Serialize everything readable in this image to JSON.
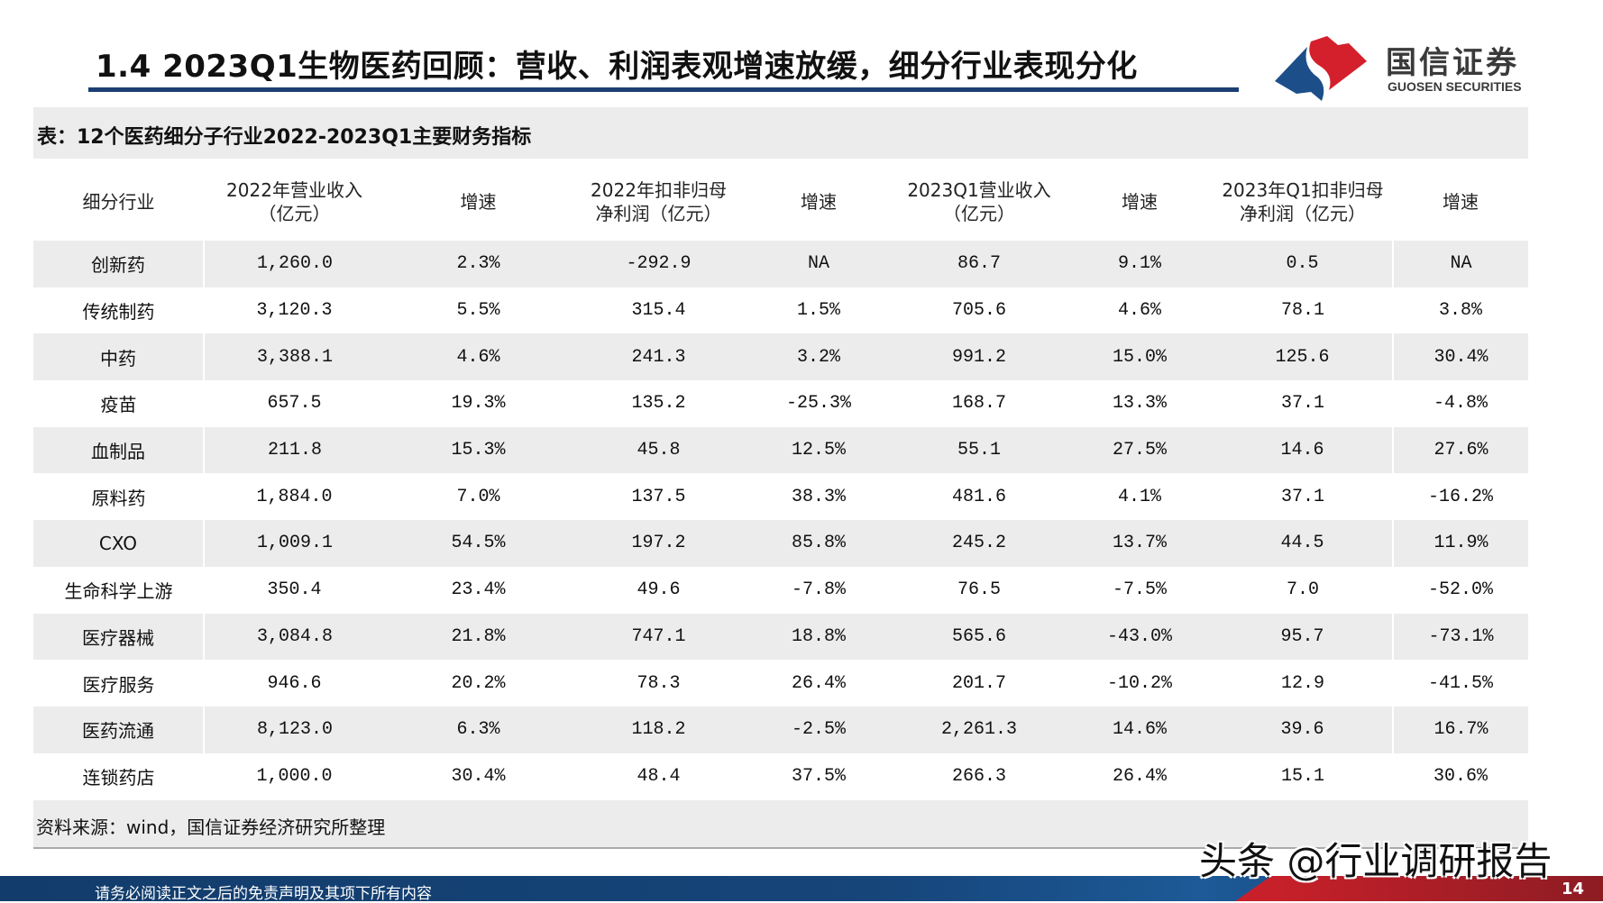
{
  "header": {
    "title": "1.4 2023Q1生物医药回顾：营收、利润表观增速放缓，细分行业表现分化",
    "logo_cn": "国信证券",
    "logo_en": "GUOSEN SECURITIES",
    "colors": {
      "blue": "#1c3f73",
      "red": "#d4202c"
    }
  },
  "table": {
    "caption": "表：12个医药细分子行业2022-2023Q1主要财务指标",
    "columns": [
      [
        "细分行业"
      ],
      [
        "2022年营业收入",
        "（亿元）"
      ],
      [
        "增速"
      ],
      [
        "2022年扣非归母",
        "净利润（亿元）"
      ],
      [
        "增速"
      ],
      [
        "2023Q1营业收入",
        "（亿元）"
      ],
      [
        "增速"
      ],
      [
        "2023年Q1扣非归母",
        "净利润（亿元）"
      ],
      [
        "增速"
      ]
    ],
    "rows": [
      [
        "创新药",
        "1,260.0",
        "2.3%",
        "-292.9",
        "NA",
        "86.7",
        "9.1%",
        "0.5",
        "NA"
      ],
      [
        "传统制药",
        "3,120.3",
        "5.5%",
        "315.4",
        "1.5%",
        "705.6",
        "4.6%",
        "78.1",
        "3.8%"
      ],
      [
        "中药",
        "3,388.1",
        "4.6%",
        "241.3",
        "3.2%",
        "991.2",
        "15.0%",
        "125.6",
        "30.4%"
      ],
      [
        "疫苗",
        "657.5",
        "19.3%",
        "135.2",
        "-25.3%",
        "168.7",
        "13.3%",
        "37.1",
        "-4.8%"
      ],
      [
        "血制品",
        "211.8",
        "15.3%",
        "45.8",
        "12.5%",
        "55.1",
        "27.5%",
        "14.6",
        "27.6%"
      ],
      [
        "原料药",
        "1,884.0",
        "7.0%",
        "137.5",
        "38.3%",
        "481.6",
        "4.1%",
        "37.1",
        "-16.2%"
      ],
      [
        "CXO",
        "1,009.1",
        "54.5%",
        "197.2",
        "85.8%",
        "245.2",
        "13.7%",
        "44.5",
        "11.9%"
      ],
      [
        "生命科学上游",
        "350.4",
        "23.4%",
        "49.6",
        "-7.8%",
        "76.5",
        "-7.5%",
        "7.0",
        "-52.0%"
      ],
      [
        "医疗器械",
        "3,084.8",
        "21.8%",
        "747.1",
        "18.8%",
        "565.6",
        "-43.0%",
        "95.7",
        "-73.1%"
      ],
      [
        "医疗服务",
        "946.6",
        "20.2%",
        "78.3",
        "26.4%",
        "201.7",
        "-10.2%",
        "12.9",
        "-41.5%"
      ],
      [
        "医药流通",
        "8,123.0",
        "6.3%",
        "118.2",
        "-2.5%",
        "2,261.3",
        "14.6%",
        "39.6",
        "16.7%"
      ],
      [
        "连锁药店",
        "1,000.0",
        "30.4%",
        "48.4",
        "37.5%",
        "266.3",
        "26.4%",
        "15.1",
        "30.6%"
      ]
    ],
    "source": "资料来源：wind，国信证券经济研究所整理"
  },
  "footer": {
    "disclaimer": "请务必阅读正文之后的免责声明及其项下所有内容",
    "page": "14"
  },
  "watermark": "头条 @行业调研报告"
}
